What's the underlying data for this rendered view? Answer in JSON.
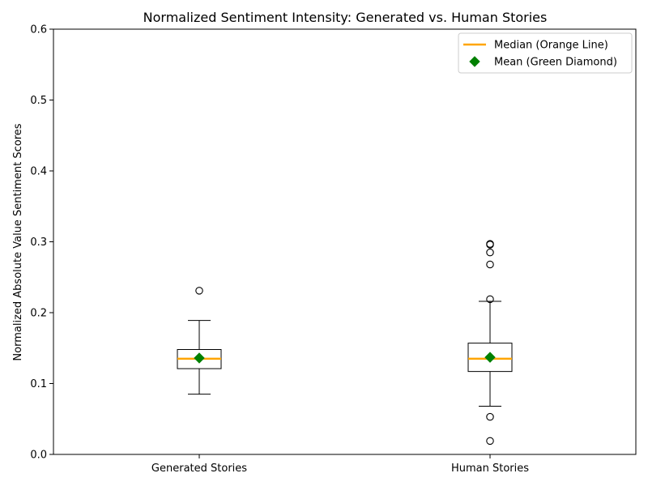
{
  "chart_data": {
    "type": "box",
    "title": "Normalized Sentiment Intensity: Generated vs. Human Stories",
    "xlabel": "",
    "ylabel": "Normalized Absolute Value Sentiment Scores",
    "ylim": [
      0.0,
      0.6
    ],
    "yticks": [
      "0.0",
      "0.1",
      "0.2",
      "0.3",
      "0.4",
      "0.5",
      "0.6"
    ],
    "yticks_values": [
      0.0,
      0.1,
      0.2,
      0.3,
      0.4,
      0.5,
      0.6
    ],
    "grid": false,
    "legend_position": "top-right",
    "colors": {
      "median": "#ffa500",
      "mean": "#008000",
      "box": "#000000",
      "flier": "#000000"
    },
    "legend": [
      {
        "label": "Median (Orange Line)",
        "marker": "line",
        "color": "#ffa500"
      },
      {
        "label": "Mean (Green Diamond)",
        "marker": "diamond",
        "color": "#008000"
      }
    ],
    "series": [
      {
        "category": "Generated Stories",
        "whisker_low": 0.085,
        "q1": 0.121,
        "median": 0.135,
        "q3": 0.148,
        "whisker_high": 0.189,
        "mean": 0.136,
        "outliers": [
          0.231
        ]
      },
      {
        "category": "Human Stories",
        "whisker_low": 0.068,
        "q1": 0.117,
        "median": 0.135,
        "q3": 0.157,
        "whisker_high": 0.216,
        "mean": 0.137,
        "outliers": [
          0.019,
          0.053,
          0.219,
          0.268,
          0.285,
          0.296,
          0.297
        ]
      }
    ]
  }
}
